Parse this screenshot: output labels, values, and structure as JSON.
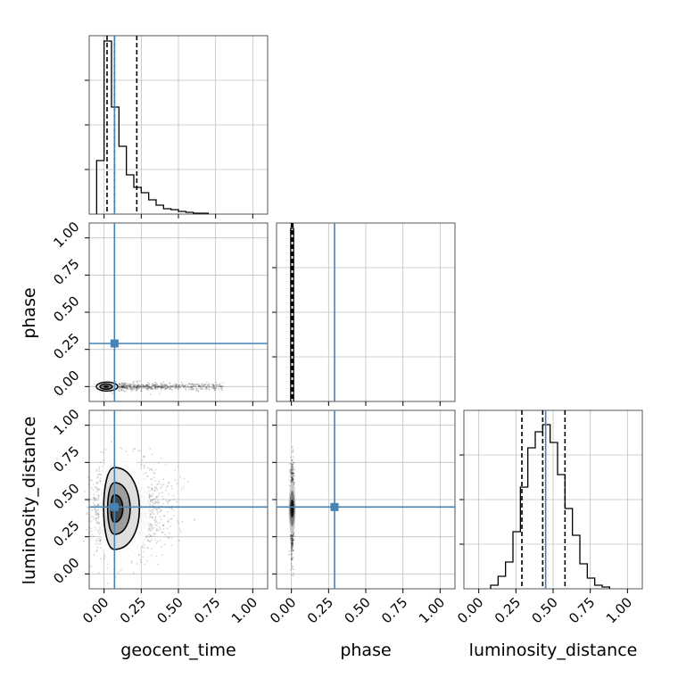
{
  "figure": {
    "variables": [
      "geocent_time",
      "phase",
      "luminosity_distance"
    ],
    "axis_range": [
      -0.1,
      1.1
    ],
    "ticks": [
      0.0,
      0.25,
      0.5,
      0.75,
      1.0
    ],
    "tick_labels": [
      "0.00",
      "0.25",
      "0.50",
      "0.75",
      "1.00"
    ],
    "colors": {
      "truth": "#4682b4",
      "hist": "#000000",
      "grid": "#c0c0c0"
    },
    "xlabels": {
      "geocent_time": "geocent_time",
      "phase": "phase",
      "luminosity_distance": "luminosity_distance"
    },
    "ylabels": {
      "phase": "phase",
      "luminosity_distance": "luminosity_distance"
    }
  },
  "chart_data": [
    {
      "type": "histogram",
      "variable": "geocent_time",
      "bin_edges": [
        -0.05,
        0.0,
        0.05,
        0.1,
        0.15,
        0.2,
        0.25,
        0.3,
        0.35,
        0.4,
        0.45,
        0.5,
        0.55,
        0.6,
        0.65,
        0.7
      ],
      "counts": [
        0.3,
        0.97,
        0.6,
        0.38,
        0.22,
        0.15,
        0.12,
        0.08,
        0.05,
        0.03,
        0.025,
        0.015,
        0.01,
        0.005,
        0.005
      ],
      "quantiles": [
        0.02,
        0.22
      ],
      "median": 0.07,
      "truth": 0.07,
      "ylim": [
        0,
        1.0
      ]
    },
    {
      "type": "histogram",
      "variable": "phase",
      "bin_edges": [
        -0.005,
        0.005,
        0.015
      ],
      "counts": [
        0.97,
        0.97
      ],
      "quantiles": [
        0.0,
        0.01
      ],
      "median": 0.005,
      "truth": 0.29,
      "ylim": [
        0,
        1.0
      ]
    },
    {
      "type": "histogram",
      "variable": "luminosity_distance",
      "bin_edges": [
        0.08,
        0.13,
        0.18,
        0.23,
        0.28,
        0.33,
        0.38,
        0.43,
        0.48,
        0.53,
        0.58,
        0.63,
        0.68,
        0.73,
        0.78,
        0.83,
        0.88
      ],
      "counts": [
        0.02,
        0.07,
        0.15,
        0.32,
        0.57,
        0.79,
        0.88,
        0.92,
        0.82,
        0.64,
        0.45,
        0.3,
        0.14,
        0.06,
        0.02,
        0.01
      ],
      "quantiles": [
        0.29,
        0.58
      ],
      "median": 0.43,
      "truth": 0.45,
      "ylim": [
        0,
        1.0
      ]
    },
    {
      "type": "scatter",
      "x_variable": "geocent_time",
      "y_variable": "phase",
      "description_points": {
        "x_range": [
          -0.02,
          0.8
        ],
        "y_center": 0.0,
        "y_spread": 0.012
      },
      "truth": [
        0.07,
        0.29
      ]
    },
    {
      "type": "scatter",
      "x_variable": "geocent_time",
      "y_variable": "luminosity_distance",
      "description_points": {
        "x_center": 0.07,
        "x_spread": 0.11,
        "x_skew": 0.18,
        "y_center": 0.44,
        "y_spread": 0.14
      },
      "truth": [
        0.07,
        0.45
      ]
    },
    {
      "type": "scatter",
      "x_variable": "phase",
      "y_variable": "luminosity_distance",
      "description_points": {
        "x_center": 0.005,
        "x_spread": 0.006,
        "y_center": 0.44,
        "y_spread": 0.14
      },
      "truth": [
        0.29,
        0.45
      ]
    }
  ]
}
